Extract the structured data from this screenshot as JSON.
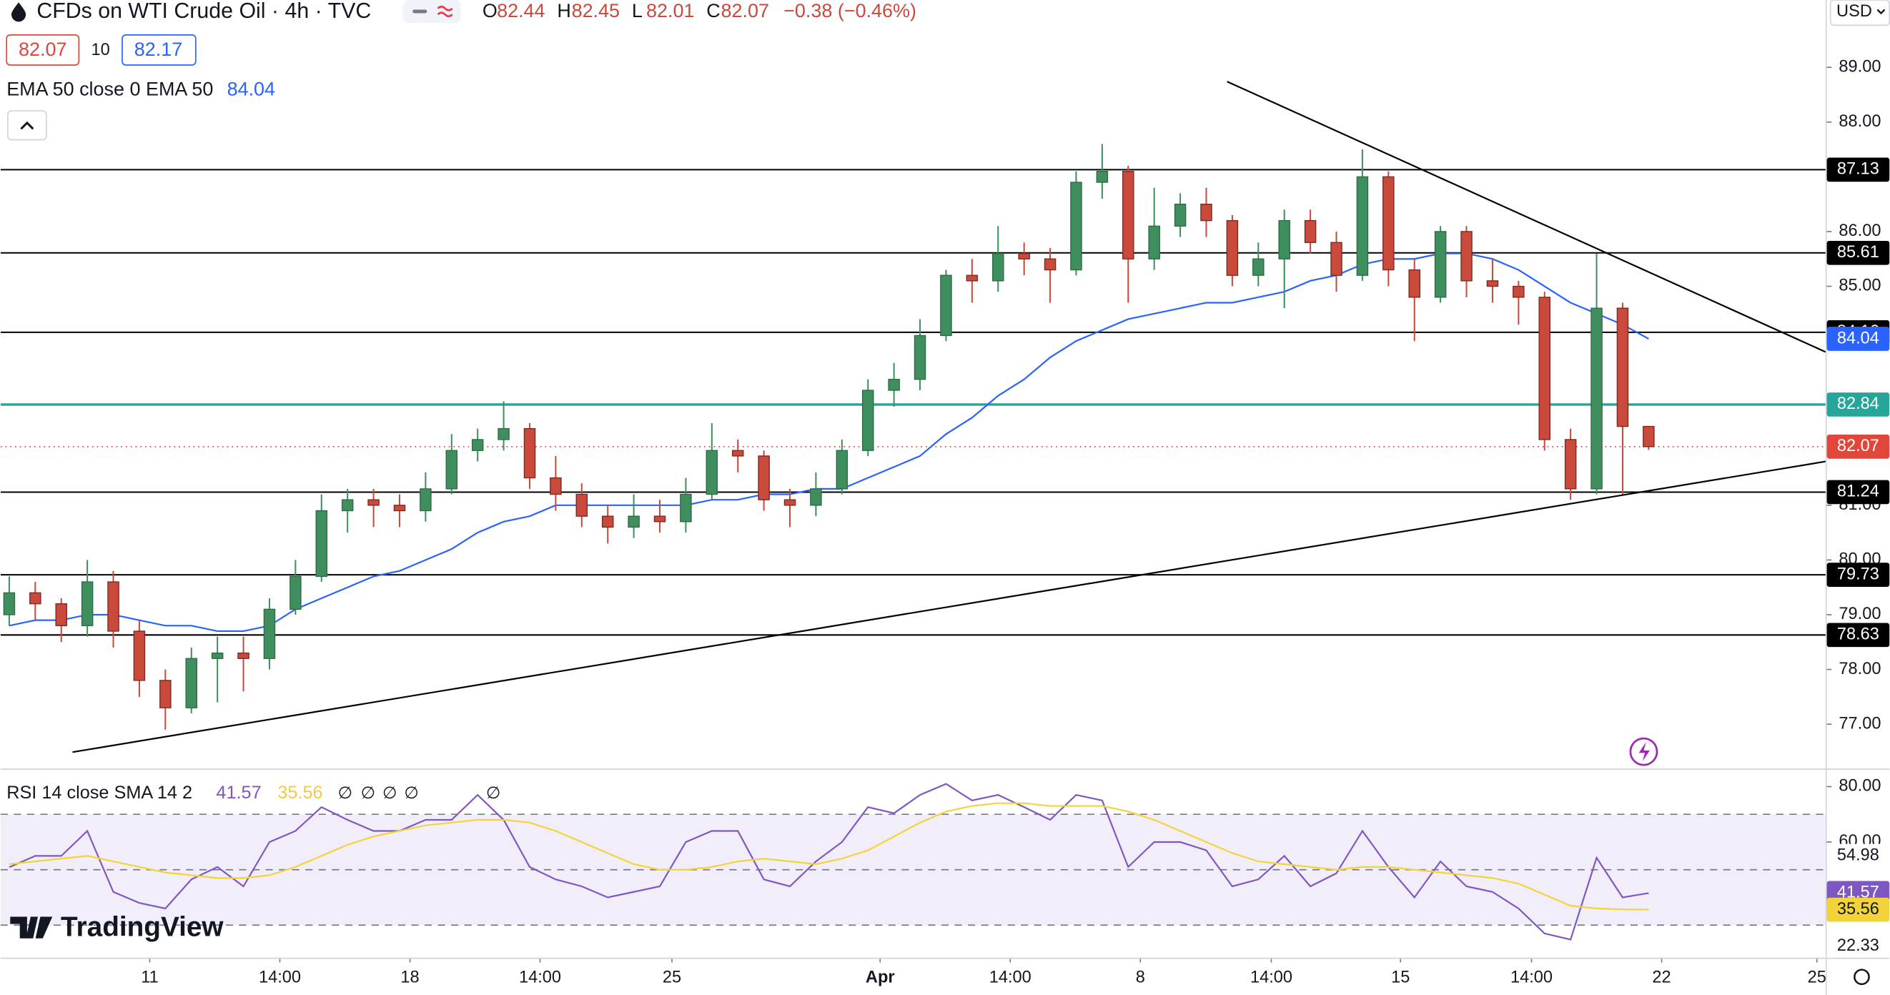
{
  "chart_data": {
    "type": "candlestick",
    "title": "CFDs on WTI Crude Oil · 4h · TVC",
    "currency": "USD",
    "ohlc_legend": [
      {
        "key": "O",
        "value": 82.44
      },
      {
        "key": "H",
        "value": 82.45
      },
      {
        "key": "L",
        "value": 82.01
      },
      {
        "key": "C",
        "value": 82.07
      }
    ],
    "change": "−0.38 (−0.46%)",
    "spread": "10",
    "ask": 82.17,
    "up_color": "#3f8f5e",
    "down_color": "#c9493b",
    "x": [
      1,
      4,
      7,
      10,
      13,
      16,
      19,
      22,
      25,
      28,
      31,
      34,
      37,
      40,
      43,
      46,
      49,
      52,
      55,
      58,
      61,
      64,
      67,
      70,
      73,
      76,
      79,
      82,
      85,
      88,
      91,
      94,
      97,
      100,
      103,
      106,
      109,
      112,
      115,
      118,
      121,
      124,
      127,
      130,
      133,
      136,
      139,
      142,
      145,
      148,
      151,
      154,
      157,
      160,
      163,
      166,
      169,
      172,
      175,
      178,
      181,
      184,
      187,
      190
    ],
    "open": [
      79.0,
      79.4,
      79.2,
      78.8,
      79.6,
      78.7,
      77.8,
      77.3,
      78.2,
      78.3,
      78.2,
      79.1,
      79.7,
      80.9,
      81.1,
      81.0,
      80.9,
      81.3,
      82.0,
      82.2,
      82.4,
      81.5,
      81.2,
      80.8,
      80.6,
      80.8,
      80.7,
      81.2,
      82.0,
      81.9,
      81.1,
      81.0,
      81.3,
      82.0,
      83.1,
      83.3,
      84.1,
      85.2,
      85.1,
      85.6,
      85.5,
      85.3,
      86.9,
      87.1,
      85.5,
      86.1,
      86.5,
      86.2,
      85.2,
      85.5,
      86.2,
      85.8,
      85.2,
      87.0,
      85.3,
      84.8,
      86.0,
      85.1,
      85.0,
      84.8,
      82.2,
      81.3,
      84.6,
      82.44
    ],
    "high": [
      79.7,
      79.6,
      79.3,
      80.0,
      79.8,
      78.9,
      78.0,
      78.4,
      78.6,
      78.6,
      79.3,
      80.0,
      81.2,
      81.3,
      81.3,
      81.2,
      81.6,
      82.3,
      82.4,
      82.9,
      82.5,
      81.9,
      81.4,
      81.0,
      81.2,
      81.1,
      81.5,
      82.5,
      82.2,
      82.0,
      81.3,
      81.6,
      82.2,
      83.3,
      83.6,
      84.4,
      85.3,
      85.5,
      86.1,
      85.8,
      85.7,
      87.1,
      87.6,
      87.2,
      86.8,
      86.7,
      86.8,
      86.3,
      85.8,
      86.4,
      86.4,
      86.0,
      87.5,
      87.1,
      85.5,
      86.1,
      86.1,
      85.5,
      85.1,
      84.9,
      82.4,
      85.6,
      84.7,
      82.45
    ],
    "low": [
      78.8,
      78.9,
      78.5,
      78.6,
      78.4,
      77.5,
      76.9,
      77.2,
      77.4,
      77.6,
      78.0,
      79.0,
      79.6,
      80.5,
      80.6,
      80.6,
      80.7,
      81.2,
      81.8,
      82.0,
      81.3,
      80.9,
      80.6,
      80.3,
      80.4,
      80.5,
      80.5,
      81.1,
      81.6,
      80.9,
      80.6,
      80.8,
      81.2,
      81.9,
      82.8,
      83.1,
      84.0,
      84.7,
      84.9,
      85.2,
      84.7,
      85.2,
      86.6,
      84.7,
      85.3,
      85.9,
      85.9,
      85.0,
      85.0,
      84.6,
      85.6,
      84.9,
      85.1,
      85.0,
      84.0,
      84.7,
      84.8,
      84.7,
      84.3,
      82.0,
      81.1,
      81.2,
      81.2,
      82.01
    ],
    "close": [
      79.4,
      79.2,
      78.8,
      79.6,
      78.7,
      77.8,
      77.3,
      78.2,
      78.3,
      78.2,
      79.1,
      79.7,
      80.9,
      81.1,
      81.0,
      80.9,
      81.3,
      82.0,
      82.2,
      82.4,
      81.5,
      81.2,
      80.8,
      80.6,
      80.8,
      80.7,
      81.2,
      82.0,
      81.9,
      81.1,
      81.0,
      81.3,
      82.0,
      83.1,
      83.3,
      84.1,
      85.2,
      85.1,
      85.6,
      85.5,
      85.3,
      86.9,
      87.1,
      85.5,
      86.1,
      86.5,
      86.2,
      85.2,
      85.5,
      86.2,
      85.8,
      85.2,
      87.0,
      85.3,
      84.8,
      86.0,
      85.1,
      85.0,
      84.8,
      82.2,
      81.3,
      84.6,
      82.44,
      82.07
    ],
    "xlim": [
      0,
      210.4
    ],
    "xticks": [
      {
        "value": 17.2,
        "label": "11"
      },
      {
        "value": 32.2,
        "label": "14:00"
      },
      {
        "value": 47.2,
        "label": "18"
      },
      {
        "value": 62.2,
        "label": "14:00"
      },
      {
        "value": 77.4,
        "label": "25"
      },
      {
        "value": 101.4,
        "label": "Apr"
      },
      {
        "value": 116.4,
        "label": "14:00"
      },
      {
        "value": 131.4,
        "label": "8"
      },
      {
        "value": 146.5,
        "label": "14:00"
      },
      {
        "value": 161.4,
        "label": "15"
      },
      {
        "value": 176.5,
        "label": "14:00"
      },
      {
        "value": 191.5,
        "label": "22"
      },
      {
        "value": 209.4,
        "label": "25"
      }
    ],
    "ylim": [
      76.19,
      90.23
    ],
    "yticks": [
      {
        "value": 77,
        "label": "77.00"
      },
      {
        "value": 78,
        "label": "78.00"
      },
      {
        "value": 79,
        "label": "79.00"
      },
      {
        "value": 80,
        "label": "80.00"
      },
      {
        "value": 81,
        "label": "81.00"
      },
      {
        "value": 85,
        "label": "85.00"
      },
      {
        "value": 86,
        "label": "86.00"
      },
      {
        "value": 87,
        "label": "87.00"
      },
      {
        "value": 88,
        "label": "88.00"
      },
      {
        "value": 89,
        "label": "89.00"
      }
    ],
    "ema": {
      "name": "EMA 50 close 0 EMA 50",
      "color": "#2962ff",
      "values": [
        78.8,
        78.9,
        78.9,
        79.0,
        79.0,
        78.9,
        78.8,
        78.8,
        78.7,
        78.7,
        78.8,
        79.1,
        79.3,
        79.5,
        79.7,
        79.8,
        80.0,
        80.2,
        80.5,
        80.7,
        80.8,
        81.0,
        81.0,
        81.0,
        81.0,
        81.0,
        81.0,
        81.1,
        81.1,
        81.2,
        81.2,
        81.3,
        81.3,
        81.5,
        81.7,
        81.9,
        82.3,
        82.6,
        83.0,
        83.3,
        83.7,
        84.0,
        84.2,
        84.4,
        84.5,
        84.6,
        84.7,
        84.7,
        84.8,
        84.9,
        85.1,
        85.2,
        85.4,
        85.5,
        85.5,
        85.6,
        85.6,
        85.5,
        85.3,
        85.0,
        84.7,
        84.5,
        84.3,
        84.04
      ]
    },
    "levels": {
      "color": "#000000",
      "values": [
        87.13,
        85.61,
        84.16,
        81.24,
        79.73,
        78.63
      ]
    },
    "key_level": {
      "color": "#26a69a",
      "value": 82.84
    },
    "last_price_color": "#e0473a",
    "trendlines": [
      {
        "x": [
          141.4,
          210.4
        ],
        "y": [
          88.74,
          83.8
        ]
      },
      {
        "x": [
          8.3,
          210.4
        ],
        "y": [
          76.49,
          81.8
        ]
      }
    ],
    "rsi": {
      "name": "RSI 14 close SMA 14 2",
      "ylim": [
        18.26,
        85.65
      ],
      "yticks": [
        {
          "value": 80,
          "label": "80.00"
        },
        {
          "value": 60,
          "label": "60.00"
        }
      ],
      "bands": [
        70,
        50,
        30
      ],
      "axis_values": [
        54.98,
        22.33
      ],
      "na_markers": [
        "∅",
        "∅",
        "∅",
        "∅",
        "∅"
      ],
      "series": [
        {
          "name": "RSI",
          "color": "#7e57c2",
          "values": [
            50.9,
            55,
            55,
            64,
            42,
            38,
            36,
            46.5,
            51,
            44,
            60,
            64,
            72.6,
            68,
            64,
            64,
            68,
            68,
            77,
            68,
            51,
            46.5,
            44,
            40,
            42,
            44,
            60,
            64,
            64,
            46.5,
            44,
            53,
            60,
            72.6,
            70.4,
            77,
            81,
            75,
            77,
            72.6,
            68,
            77,
            75,
            51,
            60,
            60,
            57,
            44,
            46.5,
            55,
            44,
            48.7,
            64,
            51,
            40,
            53,
            44,
            42,
            36,
            27,
            24.8,
            54.3,
            40,
            41.57
          ]
        },
        {
          "name": "SMA",
          "color": "#f2d43a",
          "values": [
            52,
            53,
            54,
            55,
            53,
            51,
            49,
            48,
            47,
            47,
            48,
            51,
            55,
            59,
            62,
            64,
            66,
            67,
            68,
            68,
            67,
            64,
            60,
            56,
            52,
            50,
            50,
            51,
            53,
            54,
            53,
            52,
            54,
            57,
            62,
            67,
            71,
            73,
            74,
            74,
            73,
            73,
            73,
            71,
            68,
            64,
            60,
            56,
            53,
            52,
            51,
            50,
            51,
            51,
            50,
            49,
            48,
            47,
            45,
            41,
            37,
            36,
            35.7,
            35.56
          ]
        }
      ]
    },
    "brand": "TradingView"
  }
}
